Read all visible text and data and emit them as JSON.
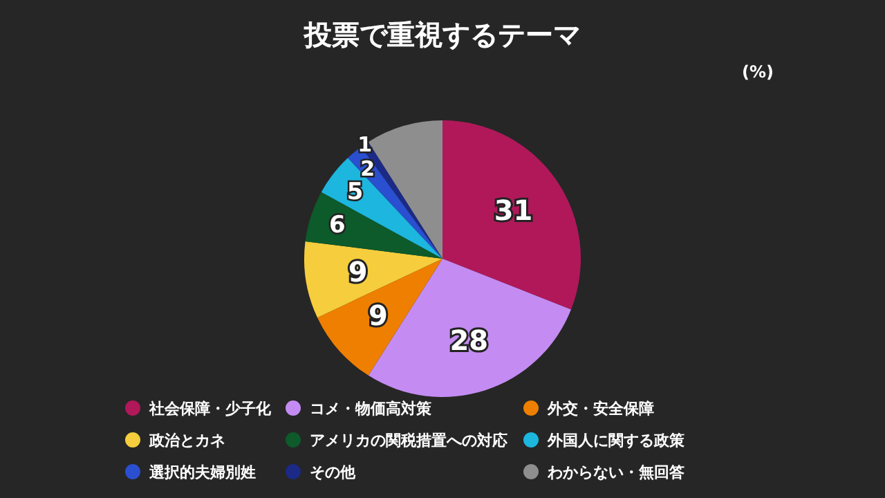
{
  "chart_data": {
    "type": "pie",
    "title": "投票で重視するテーマ",
    "annotations": [
      "(%)"
    ],
    "categories": [
      "社会保障・少子化",
      "コメ・物価高対策",
      "外交・安全保障",
      "政治とカネ",
      "アメリカの関税措置への対応",
      "外国人に関する政策",
      "選択的夫婦別姓",
      "その他",
      "わからない・無回答"
    ],
    "values": [
      31,
      28,
      9,
      9,
      6,
      5,
      2,
      1,
      9
    ],
    "value_labels": [
      "31",
      "28",
      "9",
      "9",
      "6",
      "5",
      "2",
      "1",
      null
    ],
    "colors": [
      "#b0185a",
      "#c48cf2",
      "#ee7f00",
      "#f6cd3c",
      "#0d5a2a",
      "#1cb6de",
      "#2a4fd0",
      "#1b2a86",
      "#8e8e8e"
    ],
    "legend": "bottom"
  }
}
